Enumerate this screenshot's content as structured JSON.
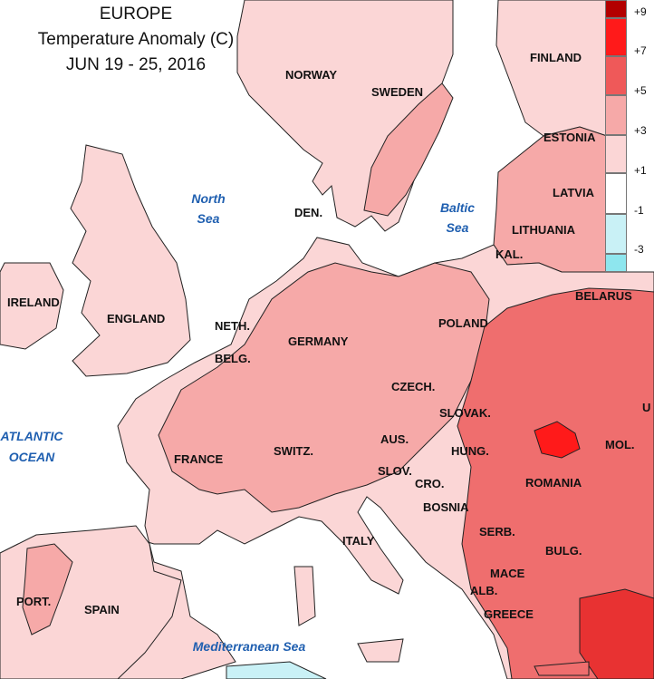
{
  "title": {
    "region": "EUROPE",
    "subtitle": "Temperature Anomaly (C)",
    "dates": "JUN 19 - 25, 2016"
  },
  "colors": {
    "land_light": "#fbd6d6",
    "land_medium": "#f6a9a8",
    "land_strong": "#ef6e6e",
    "land_hot": "#e83232",
    "neutral": "#ffffff",
    "cool": "#c9f1f6",
    "cold": "#8ee6ee",
    "water_label": "#1f5fb0"
  },
  "legend": {
    "labels": [
      "+9",
      "+7",
      "+5",
      "+3",
      "+1",
      "-1",
      "-3"
    ],
    "swatch_colors": [
      "#b30000",
      "#ff1a1a",
      "#ef5959",
      "#f6a9a8",
      "#fbd6d6",
      "#ffffff",
      "#c9f1f6",
      "#8ee6ee"
    ]
  },
  "countries": {
    "norway": "NORWAY",
    "sweden": "SWEDEN",
    "finland": "FINLAND",
    "estonia": "ESTONIA",
    "latvia": "LATVIA",
    "lithuania": "LITHUANIA",
    "kal": "KAL.",
    "belarus": "BELARUS",
    "den": "DEN.",
    "ireland": "IRELAND",
    "england": "ENGLAND",
    "neth": "NETH.",
    "belg": "BELG.",
    "germany": "GERMANY",
    "poland": "POLAND",
    "czech": "CZECH.",
    "slovak": "SLOVAK.",
    "france": "FRANCE",
    "switz": "SWITZ.",
    "aus": "AUS.",
    "hung": "HUNG.",
    "mol": "MOL.",
    "slov": "SLOV.",
    "cro": "CRO.",
    "romania": "ROMANIA",
    "bosnia": "BOSNIA",
    "serb": "SERB.",
    "bulg": "BULG.",
    "italy": "ITALY",
    "port": "PORT.",
    "spain": "SPAIN",
    "mace": "MACE",
    "alb": "ALB.",
    "greece": "GREECE",
    "u_edge": "U"
  },
  "water_bodies": {
    "north_sea_line1": "North",
    "north_sea_line2": "Sea",
    "baltic_line1": "Baltic",
    "baltic_line2": "Sea",
    "atlantic_line1": "ATLANTIC",
    "atlantic_line2": "OCEAN",
    "med": "Mediterranean Sea"
  }
}
